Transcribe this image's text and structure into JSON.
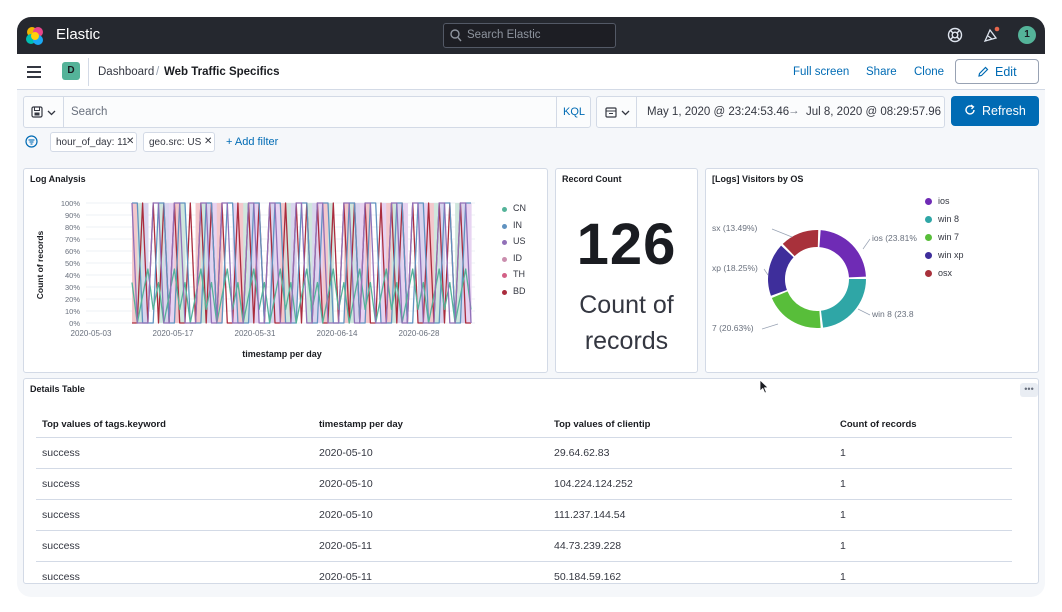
{
  "header": {
    "brand": "Elastic",
    "search_placeholder": "Search Elastic",
    "avatar_initial": "1"
  },
  "nav": {
    "space_initial": "D",
    "breadcrumb": [
      "Dashboard",
      "Web Traffic Specifics"
    ],
    "breadcrumb_sep": "/",
    "links": [
      "Full screen",
      "Share",
      "Clone"
    ],
    "edit_label": "Edit"
  },
  "query": {
    "placeholder": "Search",
    "language": "KQL",
    "date_start": "May 1, 2020 @ 23:24:53.46",
    "date_arrow": "→",
    "date_end": "Jul 8, 2020 @ 08:29:57.96",
    "refresh_label": "Refresh"
  },
  "filters": {
    "pills": [
      "hour_of_day: 11",
      "geo.src: US"
    ],
    "add_label": "+ Add filter"
  },
  "log_analysis": {
    "title": "Log Analysis",
    "ylabel": "Count of records",
    "xlabel": "timestamp per day",
    "y_ticks": [
      "100%",
      "90%",
      "80%",
      "70%",
      "60%",
      "50%",
      "40%",
      "30%",
      "20%",
      "10%",
      "0%"
    ],
    "x_ticks": [
      "2020-05-03",
      "2020-05-17",
      "2020-05-31",
      "2020-06-14",
      "2020-06-28"
    ],
    "legend": [
      {
        "name": "CN",
        "color": "#54b399"
      },
      {
        "name": "IN",
        "color": "#6092c0"
      },
      {
        "name": "US",
        "color": "#9170b8"
      },
      {
        "name": "ID",
        "color": "#ca8eae"
      },
      {
        "name": "TH",
        "color": "#d36086"
      },
      {
        "name": "BD",
        "color": "#aa2c3d"
      }
    ]
  },
  "record_count": {
    "title": "Record Count",
    "value": "126",
    "label_line1": "Count of",
    "label_line2": "records"
  },
  "visitors_by_os": {
    "title": "[Logs] Visitors by OS",
    "slice_labels": [
      "ios (23.81%",
      "win 8 (23.8",
      "7 (20.63%)",
      "xp (18.25%)",
      "sx (13.49%)"
    ],
    "legend": [
      {
        "name": "ios",
        "color": "#6f2bb5"
      },
      {
        "name": "win 8",
        "color": "#2fa6a6"
      },
      {
        "name": "win 7",
        "color": "#58be3a"
      },
      {
        "name": "win xp",
        "color": "#3e2e9b"
      },
      {
        "name": "osx",
        "color": "#a8313b"
      }
    ]
  },
  "chart_data": {
    "type": "pie",
    "title": "[Logs] Visitors by OS",
    "categories": [
      "ios",
      "win 8",
      "win 7",
      "win xp",
      "osx"
    ],
    "values": [
      23.81,
      23.8,
      20.63,
      18.25,
      13.49
    ],
    "legend": "right"
  },
  "details_table": {
    "title": "Details Table",
    "menu_label": "•••",
    "columns": [
      "Top values of tags.keyword",
      "timestamp per day",
      "Top values of clientip",
      "Count of records"
    ],
    "rows": [
      [
        "success",
        "2020-05-10",
        "29.64.62.83",
        "1"
      ],
      [
        "success",
        "2020-05-10",
        "104.224.124.252",
        "1"
      ],
      [
        "success",
        "2020-05-10",
        "111.237.144.54",
        "1"
      ],
      [
        "success",
        "2020-05-11",
        "44.73.239.228",
        "1"
      ],
      [
        "success",
        "2020-05-11",
        "50.184.59.162",
        "1"
      ]
    ]
  }
}
